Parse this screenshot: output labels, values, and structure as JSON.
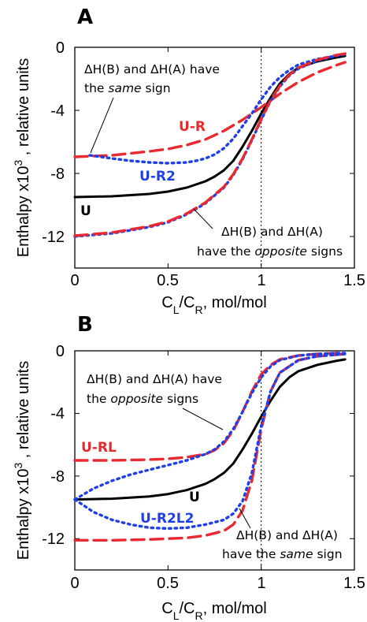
{
  "chart_data": [
    {
      "type": "line",
      "panel": "A",
      "xlabel": "C_L/C_R, mol/mol",
      "ylabel": "Enthalpy x10^3 , relative units",
      "xlim": [
        0,
        1.5
      ],
      "ylim": [
        -14,
        0
      ],
      "x_ticks": [
        "0",
        "0.5",
        "1",
        "1.5"
      ],
      "y_ticks": [
        "0",
        "-4",
        "-8",
        "-12"
      ],
      "vline_x": 1,
      "grid": false,
      "series": [
        {
          "name": "U",
          "color": "#000000",
          "style": "solid",
          "x": [
            0,
            0.2,
            0.4,
            0.5,
            0.6,
            0.7,
            0.75,
            0.8,
            0.85,
            0.9,
            0.95,
            1.0,
            1.05,
            1.1,
            1.15,
            1.2,
            1.3,
            1.4,
            1.45
          ],
          "y": [
            -9.5,
            -9.45,
            -9.3,
            -9.15,
            -8.9,
            -8.5,
            -8.2,
            -7.8,
            -7.2,
            -6.3,
            -5.3,
            -4.2,
            -3.2,
            -2.3,
            -1.7,
            -1.3,
            -0.9,
            -0.65,
            -0.55
          ]
        },
        {
          "name": "U-R",
          "color": "#e8292f",
          "style": "dash",
          "x": [
            0,
            0.2,
            0.4,
            0.5,
            0.6,
            0.7,
            0.8,
            0.9,
            1.0,
            1.1,
            1.2,
            1.3,
            1.4,
            1.45
          ],
          "y": [
            -6.95,
            -6.85,
            -6.6,
            -6.45,
            -6.2,
            -5.85,
            -5.3,
            -4.6,
            -3.8,
            -2.95,
            -2.2,
            -1.6,
            -1.15,
            -0.95
          ]
        },
        {
          "name": "U-R2",
          "color": "#1f3fe8",
          "style": "dot",
          "segments": [
            {
              "x": [
                0.08,
                0.2,
                0.3,
                0.4,
                0.5,
                0.6,
                0.65,
                0.7,
                0.75,
                0.8,
                0.85,
                0.9,
                0.95,
                1.0,
                1.05,
                1.1,
                1.15,
                1.2,
                1.3,
                1.4,
                1.45
              ],
              "y": [
                -6.85,
                -7.05,
                -7.2,
                -7.3,
                -7.35,
                -7.3,
                -7.2,
                -7.05,
                -6.8,
                -6.4,
                -5.8,
                -5.0,
                -4.2,
                -3.3,
                -2.5,
                -1.9,
                -1.45,
                -1.1,
                -0.75,
                -0.55,
                -0.45
              ]
            },
            {
              "x": [
                0,
                0.2,
                0.4,
                0.5,
                0.6,
                0.7,
                0.8,
                0.85,
                0.9,
                0.95,
                1.0,
                1.05,
                1.1,
                1.15,
                1.2,
                1.3,
                1.4,
                1.45
              ],
              "y": [
                -12.0,
                -11.8,
                -11.4,
                -11.1,
                -10.6,
                -9.9,
                -8.9,
                -8.1,
                -7.1,
                -5.9,
                -4.6,
                -3.4,
                -2.5,
                -1.8,
                -1.35,
                -0.85,
                -0.55,
                -0.45
              ]
            }
          ]
        },
        {
          "name": "U-R",
          "color": "#e8292f",
          "style": "dash",
          "segments": [
            {
              "x": [
                0,
                0.2,
                0.4,
                0.5,
                0.6,
                0.7,
                0.8,
                0.85,
                0.9,
                0.95,
                1.0,
                1.05,
                1.1,
                1.15,
                1.2,
                1.3,
                1.4,
                1.45
              ],
              "y": [
                -11.95,
                -11.75,
                -11.35,
                -11.05,
                -10.55,
                -9.85,
                -8.85,
                -8.05,
                -7.05,
                -5.85,
                -4.55,
                -3.35,
                -2.45,
                -1.75,
                -1.3,
                -0.8,
                -0.5,
                -0.4
              ]
            }
          ]
        }
      ],
      "labels": [
        {
          "text": "U-R",
          "color": "#e8292f"
        },
        {
          "text": "U-R2",
          "color": "#1f3fe8"
        },
        {
          "text": "U",
          "color": "#000000"
        }
      ],
      "annotations": [
        [
          "ΔH(B) and ΔH(A) have",
          "the same sign"
        ],
        [
          "ΔH(B) and ΔH(A)",
          "have the opposite signs"
        ]
      ]
    },
    {
      "type": "line",
      "panel": "B",
      "xlabel": "C_L/C_R, mol/mol",
      "ylabel": "Enthalpy x10^3 , relative units",
      "xlim": [
        0,
        1.5
      ],
      "ylim": [
        -14,
        0
      ],
      "x_ticks": [
        "0",
        "0.5",
        "1",
        "1.5"
      ],
      "y_ticks": [
        "0",
        "-4",
        "-8",
        "-12"
      ],
      "vline_x": 1,
      "grid": false,
      "series": [
        {
          "name": "U",
          "color": "#000000",
          "style": "solid",
          "x": [
            0,
            0.2,
            0.4,
            0.5,
            0.6,
            0.7,
            0.75,
            0.8,
            0.85,
            0.9,
            0.95,
            1.0,
            1.05,
            1.1,
            1.15,
            1.2,
            1.3,
            1.4,
            1.45
          ],
          "y": [
            -9.5,
            -9.45,
            -9.3,
            -9.15,
            -8.9,
            -8.5,
            -8.2,
            -7.8,
            -7.2,
            -6.3,
            -5.3,
            -4.2,
            -3.2,
            -2.3,
            -1.7,
            -1.3,
            -0.9,
            -0.65,
            -0.55
          ]
        },
        {
          "name": "U-RL",
          "color": "#e8292f",
          "style": "dash",
          "segments": [
            {
              "x": [
                0,
                0.2,
                0.4,
                0.5,
                0.6,
                0.7,
                0.75,
                0.8,
                0.85,
                0.9,
                0.95,
                1.0,
                1.05,
                1.1,
                1.2,
                1.3,
                1.4,
                1.45
              ],
              "y": [
                -7.0,
                -7.0,
                -6.95,
                -6.9,
                -6.8,
                -6.6,
                -6.35,
                -5.9,
                -5.1,
                -3.9,
                -2.6,
                -1.5,
                -0.9,
                -0.55,
                -0.3,
                -0.2,
                -0.15,
                -0.15
              ]
            },
            {
              "x": [
                0,
                0.2,
                0.4,
                0.5,
                0.6,
                0.7,
                0.8,
                0.85,
                0.9,
                0.95,
                1.0,
                1.05,
                1.1,
                1.2,
                1.3,
                1.4,
                1.45
              ],
              "y": [
                -12.1,
                -12.1,
                -12.05,
                -12.0,
                -11.95,
                -11.8,
                -11.5,
                -11.1,
                -10.2,
                -8.3,
                -5.0,
                -2.6,
                -1.4,
                -0.6,
                -0.35,
                -0.25,
                -0.2
              ]
            }
          ]
        },
        {
          "name": "U-R2L2",
          "color": "#1f3fe8",
          "style": "dot",
          "segments": [
            {
              "x": [
                0,
                0.1,
                0.2,
                0.3,
                0.4,
                0.5,
                0.6,
                0.7,
                0.75,
                0.8,
                0.85,
                0.9,
                0.95,
                1.0,
                1.05,
                1.1,
                1.2,
                1.3,
                1.4,
                1.45
              ],
              "y": [
                -9.5,
                -8.8,
                -8.3,
                -7.9,
                -7.6,
                -7.3,
                -7.0,
                -6.6,
                -6.3,
                -5.8,
                -5.0,
                -3.9,
                -2.7,
                -1.7,
                -1.0,
                -0.6,
                -0.3,
                -0.2,
                -0.15,
                -0.15
              ]
            },
            {
              "x": [
                0,
                0.1,
                0.2,
                0.3,
                0.4,
                0.5,
                0.6,
                0.7,
                0.8,
                0.85,
                0.9,
                0.95,
                1.0,
                1.05,
                1.1,
                1.2,
                1.3,
                1.4,
                1.45
              ],
              "y": [
                -9.5,
                -10.3,
                -10.8,
                -11.1,
                -11.3,
                -11.35,
                -11.3,
                -11.1,
                -10.8,
                -10.4,
                -9.6,
                -7.8,
                -4.8,
                -2.6,
                -1.4,
                -0.6,
                -0.35,
                -0.25,
                -0.2
              ]
            }
          ]
        }
      ],
      "labels": [
        {
          "text": "U-RL",
          "color": "#e8292f"
        },
        {
          "text": "U",
          "color": "#000000"
        },
        {
          "text": "U-R2L2",
          "color": "#1f3fe8"
        }
      ],
      "annotations": [
        [
          "ΔH(B) and ΔH(A) have",
          "the opposite signs"
        ],
        [
          "ΔH(B) and ΔH(A)",
          "have the same sign"
        ]
      ]
    }
  ]
}
